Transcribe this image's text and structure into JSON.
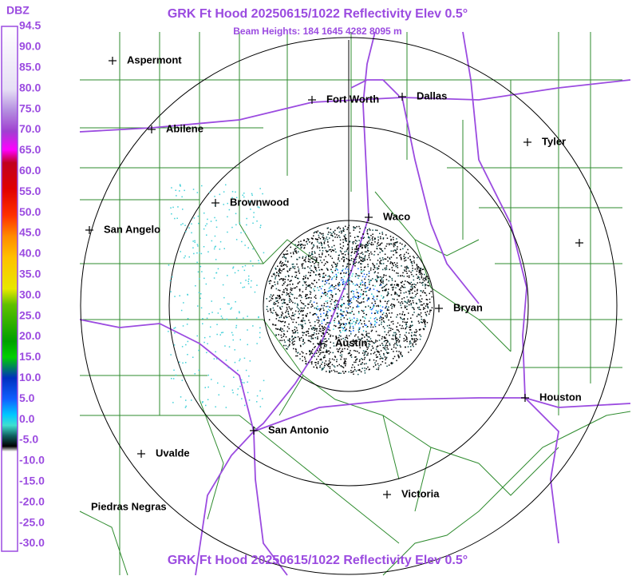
{
  "header": {
    "title": "GRK Ft Hood 20250615/1022 Reflectivity Elev 0.5°",
    "subtitle": "Beam Heights: 184 1645 4282 8095 m"
  },
  "legend": {
    "label": "DBZ",
    "ticks": [
      "94.5",
      "90.0",
      "85.0",
      "80.0",
      "75.0",
      "70.0",
      "65.0",
      "60.0",
      "55.0",
      "50.0",
      "45.0",
      "40.0",
      "35.0",
      "30.0",
      "25.0",
      "20.0",
      "15.0",
      "10.0",
      "5.0",
      "0.0",
      "-5.0",
      "-10.0",
      "-15.0",
      "-20.0",
      "-25.0",
      "-30.0"
    ]
  },
  "cities": [
    "Aspermont",
    "Fort Worth",
    "Dallas",
    "Abilene",
    "Tyler",
    "Brownwood",
    "Waco",
    "San Angelo",
    "Bryan",
    "Austin",
    "Houston",
    "San Antonio",
    "Uvalde",
    "Piedras Negras",
    "Victoria"
  ]
}
